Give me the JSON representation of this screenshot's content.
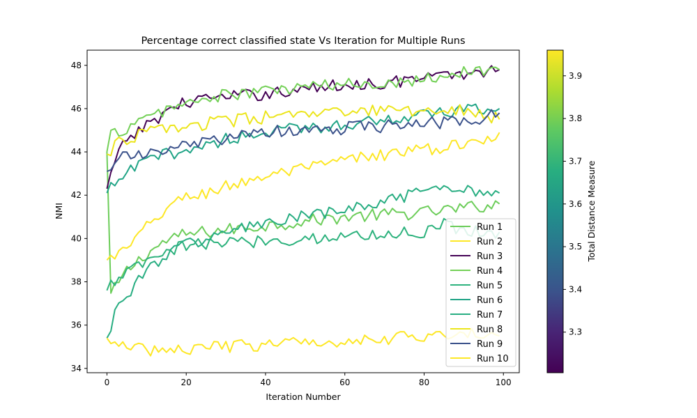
{
  "chart_data": {
    "type": "line",
    "title": "Percentage correct classified state Vs Iteration for Multiple Runs",
    "xlabel": "Iteration Number",
    "ylabel": "NMI",
    "xlim": [
      -5,
      104
    ],
    "ylim": [
      33.8,
      48.7
    ],
    "xticks": [
      0,
      20,
      40,
      60,
      80,
      100
    ],
    "yticks": [
      34,
      36,
      38,
      40,
      42,
      44,
      46,
      48
    ],
    "legend_position": "lower-right",
    "colorbar": {
      "label": "Total Distance Measure",
      "min": 3.205,
      "max": 3.96,
      "ticks": [
        3.3,
        3.4,
        3.5,
        3.6,
        3.7,
        3.8,
        3.9
      ],
      "colormap": "viridis"
    },
    "series": [
      {
        "name": "Run 1",
        "color": "#6ccd59",
        "start": 44.0,
        "end": 41.6,
        "keypoints": [
          [
            0,
            44.0
          ],
          [
            1,
            37.4
          ],
          [
            5,
            38.5
          ],
          [
            10,
            39.3
          ],
          [
            15,
            39.9
          ],
          [
            20,
            40.2
          ],
          [
            30,
            40.4
          ],
          [
            40,
            40.6
          ],
          [
            50,
            40.8
          ],
          [
            60,
            41.0
          ],
          [
            70,
            41.1
          ],
          [
            80,
            41.2
          ],
          [
            90,
            41.4
          ],
          [
            99,
            41.6
          ]
        ]
      },
      {
        "name": "Run 2",
        "color": "#fde725",
        "start": 39.0,
        "end": 44.9,
        "keypoints": [
          [
            0,
            39.0
          ],
          [
            5,
            39.5
          ],
          [
            10,
            40.5
          ],
          [
            15,
            41.4
          ],
          [
            20,
            41.9
          ],
          [
            25,
            42.1
          ],
          [
            30,
            42.4
          ],
          [
            40,
            42.9
          ],
          [
            50,
            43.2
          ],
          [
            60,
            43.6
          ],
          [
            70,
            43.9
          ],
          [
            80,
            44.1
          ],
          [
            90,
            44.3
          ],
          [
            99,
            44.9
          ]
        ]
      },
      {
        "name": "Run 3",
        "color": "#440154",
        "start": 42.3,
        "end": 47.8,
        "keypoints": [
          [
            0,
            42.3
          ],
          [
            2,
            43.5
          ],
          [
            5,
            44.6
          ],
          [
            10,
            45.2
          ],
          [
            15,
            45.9
          ],
          [
            20,
            46.3
          ],
          [
            25,
            46.5
          ],
          [
            30,
            46.5
          ],
          [
            40,
            46.7
          ],
          [
            50,
            46.9
          ],
          [
            60,
            47.1
          ],
          [
            70,
            47.2
          ],
          [
            80,
            47.4
          ],
          [
            90,
            47.6
          ],
          [
            99,
            47.8
          ]
        ]
      },
      {
        "name": "Run 4",
        "color": "#73d056",
        "start": 44.0,
        "end": 47.8,
        "keypoints": [
          [
            0,
            44.0
          ],
          [
            1,
            44.8
          ],
          [
            5,
            45.1
          ],
          [
            10,
            45.5
          ],
          [
            15,
            46.0
          ],
          [
            20,
            46.2
          ],
          [
            25,
            46.5
          ],
          [
            30,
            46.6
          ],
          [
            40,
            46.8
          ],
          [
            50,
            47.0
          ],
          [
            60,
            47.1
          ],
          [
            70,
            47.2
          ],
          [
            80,
            47.4
          ],
          [
            90,
            47.7
          ],
          [
            99,
            47.8
          ]
        ]
      },
      {
        "name": "Run 5",
        "color": "#2db27d",
        "start": 37.6,
        "end": 40.3,
        "keypoints": [
          [
            0,
            37.6
          ],
          [
            3,
            38.3
          ],
          [
            5,
            38.4
          ],
          [
            10,
            38.9
          ],
          [
            15,
            39.3
          ],
          [
            20,
            39.7
          ],
          [
            30,
            39.8
          ],
          [
            40,
            39.9
          ],
          [
            50,
            40.0
          ],
          [
            60,
            40.1
          ],
          [
            70,
            40.2
          ],
          [
            80,
            40.3
          ],
          [
            85,
            40.7
          ],
          [
            90,
            40.4
          ],
          [
            99,
            40.3
          ]
        ]
      },
      {
        "name": "Run 6",
        "color": "#20a486",
        "start": 42.1,
        "end": 46.0,
        "keypoints": [
          [
            0,
            42.1
          ],
          [
            3,
            42.7
          ],
          [
            5,
            43.0
          ],
          [
            10,
            43.6
          ],
          [
            15,
            43.9
          ],
          [
            20,
            44.1
          ],
          [
            25,
            44.3
          ],
          [
            30,
            44.6
          ],
          [
            40,
            44.9
          ],
          [
            50,
            45.1
          ],
          [
            60,
            45.3
          ],
          [
            70,
            45.5
          ],
          [
            80,
            45.7
          ],
          [
            90,
            45.9
          ],
          [
            99,
            46.0
          ]
        ]
      },
      {
        "name": "Run 7",
        "color": "#27ad81",
        "start": 35.4,
        "end": 42.1,
        "keypoints": [
          [
            0,
            35.4
          ],
          [
            2,
            36.6
          ],
          [
            5,
            37.4
          ],
          [
            10,
            38.5
          ],
          [
            15,
            39.3
          ],
          [
            20,
            39.7
          ],
          [
            25,
            40.0
          ],
          [
            30,
            40.3
          ],
          [
            40,
            40.7
          ],
          [
            50,
            41.0
          ],
          [
            60,
            41.3
          ],
          [
            70,
            41.7
          ],
          [
            80,
            42.1
          ],
          [
            90,
            42.3
          ],
          [
            99,
            42.1
          ]
        ]
      },
      {
        "name": "Run 8",
        "color": "#ece51b",
        "start": 43.9,
        "end": 45.5,
        "keypoints": [
          [
            0,
            43.9
          ],
          [
            3,
            44.4
          ],
          [
            5,
            44.6
          ],
          [
            10,
            44.9
          ],
          [
            15,
            45.1
          ],
          [
            20,
            45.2
          ],
          [
            30,
            45.4
          ],
          [
            40,
            45.6
          ],
          [
            50,
            45.7
          ],
          [
            60,
            45.8
          ],
          [
            70,
            45.9
          ],
          [
            80,
            45.9
          ],
          [
            90,
            46.0
          ],
          [
            99,
            45.5
          ]
        ]
      },
      {
        "name": "Run 9",
        "color": "#3b528b",
        "start": 43.1,
        "end": 45.8,
        "keypoints": [
          [
            0,
            43.1
          ],
          [
            3,
            43.9
          ],
          [
            5,
            43.8
          ],
          [
            10,
            43.8
          ],
          [
            15,
            44.1
          ],
          [
            20,
            44.3
          ],
          [
            30,
            44.6
          ],
          [
            40,
            44.9
          ],
          [
            50,
            45.0
          ],
          [
            60,
            45.1
          ],
          [
            70,
            45.2
          ],
          [
            80,
            45.3
          ],
          [
            90,
            45.4
          ],
          [
            99,
            45.8
          ]
        ]
      },
      {
        "name": "Run 10",
        "color": "#fde725",
        "start": 35.4,
        "end": 35.5,
        "keypoints": [
          [
            0,
            35.4
          ],
          [
            5,
            34.9
          ],
          [
            10,
            34.9
          ],
          [
            15,
            34.8
          ],
          [
            20,
            34.9
          ],
          [
            30,
            35.0
          ],
          [
            40,
            35.1
          ],
          [
            50,
            35.2
          ],
          [
            60,
            35.3
          ],
          [
            70,
            35.4
          ],
          [
            80,
            35.5
          ],
          [
            90,
            35.6
          ],
          [
            99,
            35.5
          ]
        ]
      }
    ]
  }
}
